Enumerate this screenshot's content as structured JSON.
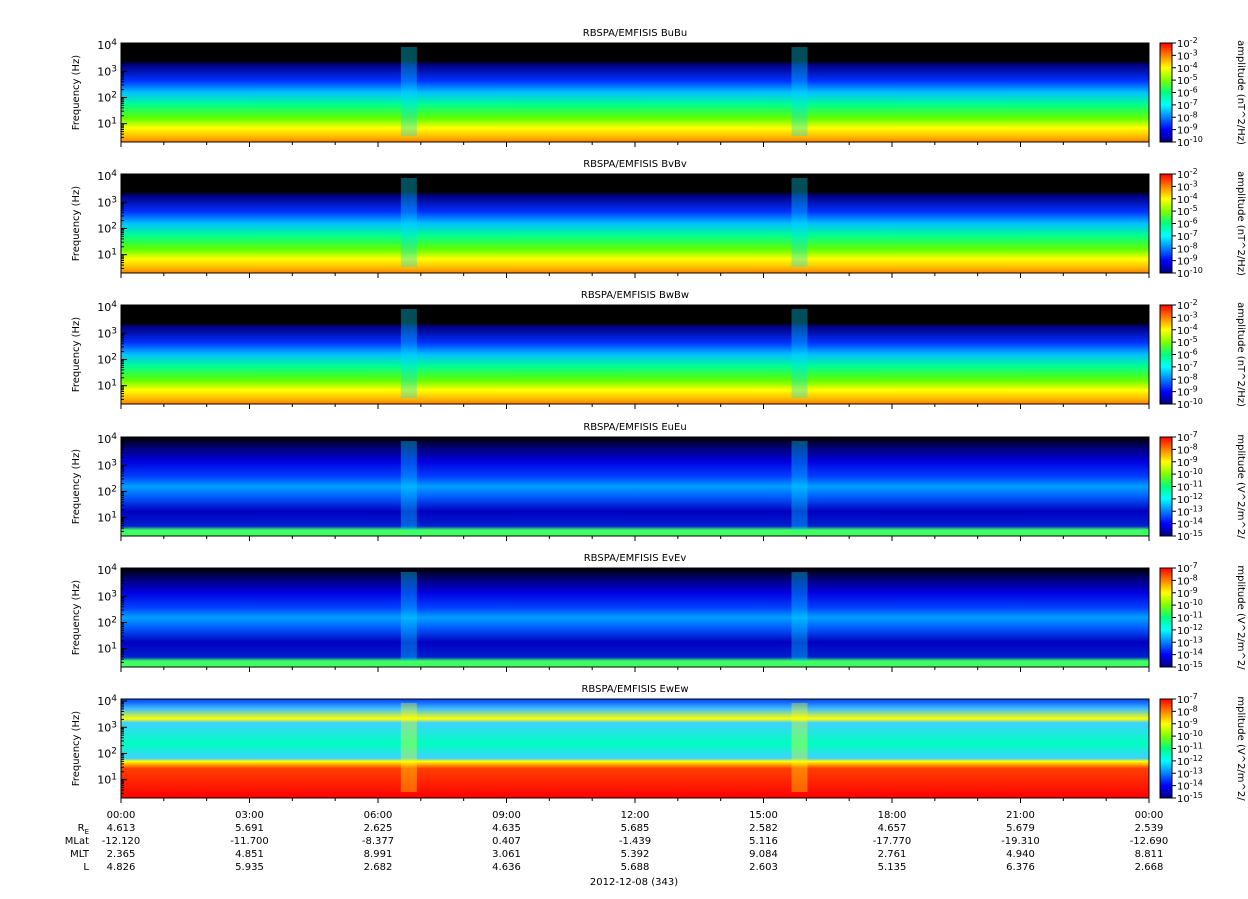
{
  "page": {
    "date_label": "2012-12-08 (343)"
  },
  "colorbar_colors": [
    "#00007f",
    "#0000ff",
    "#0080ff",
    "#00ffff",
    "#00ff80",
    "#80ff00",
    "#ffff00",
    "#ff8000",
    "#ff0000"
  ],
  "chart_data": [
    {
      "type": "heatmap",
      "title": "RBSPA/EMFISIS  BuBu",
      "ylabel": "Frequency (Hz)",
      "y_scale": "log",
      "ylim": [
        2,
        12000
      ],
      "yticks": [
        "10^1",
        "10^2",
        "10^3",
        "10^4"
      ],
      "colorbar_label": "amplitude (nT^2/Hz)",
      "colorbar_range": [
        "10^-10",
        "10^-2"
      ],
      "colorbar_ticks": [
        "10^-2",
        "10^-3",
        "10^-4",
        "10^-5",
        "10^-6",
        "10^-7",
        "10^-8",
        "10^-9",
        "10^-10"
      ],
      "profile": "magnetic",
      "background_floor": "black"
    },
    {
      "type": "heatmap",
      "title": "RBSPA/EMFISIS  BvBv",
      "ylabel": "Frequency (Hz)",
      "y_scale": "log",
      "ylim": [
        2,
        12000
      ],
      "yticks": [
        "10^1",
        "10^2",
        "10^3",
        "10^4"
      ],
      "colorbar_label": "amplitude (nT^2/Hz)",
      "colorbar_range": [
        "10^-10",
        "10^-2"
      ],
      "colorbar_ticks": [
        "10^-2",
        "10^-3",
        "10^-4",
        "10^-5",
        "10^-6",
        "10^-7",
        "10^-8",
        "10^-9",
        "10^-10"
      ],
      "profile": "magnetic",
      "background_floor": "black"
    },
    {
      "type": "heatmap",
      "title": "RBSPA/EMFISIS  BwBw",
      "ylabel": "Frequency (Hz)",
      "y_scale": "log",
      "ylim": [
        2,
        12000
      ],
      "yticks": [
        "10^1",
        "10^2",
        "10^3",
        "10^4"
      ],
      "colorbar_label": "amplitude (nT^2/Hz)",
      "colorbar_range": [
        "10^-10",
        "10^-2"
      ],
      "colorbar_ticks": [
        "10^-2",
        "10^-3",
        "10^-4",
        "10^-5",
        "10^-6",
        "10^-7",
        "10^-8",
        "10^-9",
        "10^-10"
      ],
      "profile": "magnetic",
      "background_floor": "black"
    },
    {
      "type": "heatmap",
      "title": "RBSPA/EMFISIS  EuEu",
      "ylabel": "Frequency (Hz)",
      "y_scale": "log",
      "ylim": [
        2,
        12000
      ],
      "yticks": [
        "10^1",
        "10^2",
        "10^3",
        "10^4"
      ],
      "colorbar_label": "mplitude (V^2/m^2/",
      "colorbar_range": [
        "10^-15",
        "10^-7"
      ],
      "colorbar_ticks": [
        "10^-7",
        "10^-8",
        "10^-9",
        "10^-10",
        "10^-11",
        "10^-12",
        "10^-13",
        "10^-14",
        "10^-15"
      ],
      "profile": "electric",
      "background_floor": "black"
    },
    {
      "type": "heatmap",
      "title": "RBSPA/EMFISIS  EvEv",
      "ylabel": "Frequency (Hz)",
      "y_scale": "log",
      "ylim": [
        2,
        12000
      ],
      "yticks": [
        "10^1",
        "10^2",
        "10^3",
        "10^4"
      ],
      "colorbar_label": "mplitude (V^2/m^2/",
      "colorbar_range": [
        "10^-15",
        "10^-7"
      ],
      "colorbar_ticks": [
        "10^-7",
        "10^-8",
        "10^-9",
        "10^-10",
        "10^-11",
        "10^-12",
        "10^-13",
        "10^-14",
        "10^-15"
      ],
      "profile": "electric",
      "background_floor": "black"
    },
    {
      "type": "heatmap",
      "title": "RBSPA/EMFISIS  EwEw",
      "ylabel": "Frequency (Hz)",
      "y_scale": "log",
      "ylim": [
        2,
        12000
      ],
      "yticks": [
        "10^1",
        "10^2",
        "10^3",
        "10^4"
      ],
      "colorbar_label": "mplitude (V^2/m^2/",
      "colorbar_range": [
        "10^-15",
        "10^-7"
      ],
      "colorbar_ticks": [
        "10^-7",
        "10^-8",
        "10^-9",
        "10^-10",
        "10^-11",
        "10^-12",
        "10^-13",
        "10^-14",
        "10^-15"
      ],
      "profile": "electric_w",
      "background_floor": "light-blue"
    }
  ],
  "x_axis": {
    "time_labels": [
      "00:00",
      "03:00",
      "06:00",
      "09:00",
      "12:00",
      "15:00",
      "18:00",
      "21:00",
      "00:00"
    ],
    "ephemeris": [
      {
        "name": "R",
        "sub": "E",
        "values": [
          "4.613",
          "5.691",
          "2.625",
          "4.635",
          "5.685",
          "2.582",
          "4.657",
          "5.679",
          "2.539"
        ]
      },
      {
        "name": "MLat",
        "sub": "",
        "values": [
          "-12.120",
          "-11.700",
          "-8.377",
          "0.407",
          "-1.439",
          "5.116",
          "-17.770",
          "-19.310",
          "-12.690"
        ]
      },
      {
        "name": "MLT",
        "sub": "",
        "values": [
          "2.365",
          "4.851",
          "8.991",
          "3.061",
          "5.392",
          "9.084",
          "2.761",
          "4.940",
          "8.811"
        ]
      },
      {
        "name": "L",
        "sub": "",
        "values": [
          "4.826",
          "5.935",
          "2.682",
          "4.636",
          "5.688",
          "2.603",
          "5.135",
          "6.376",
          "2.668"
        ]
      }
    ]
  }
}
